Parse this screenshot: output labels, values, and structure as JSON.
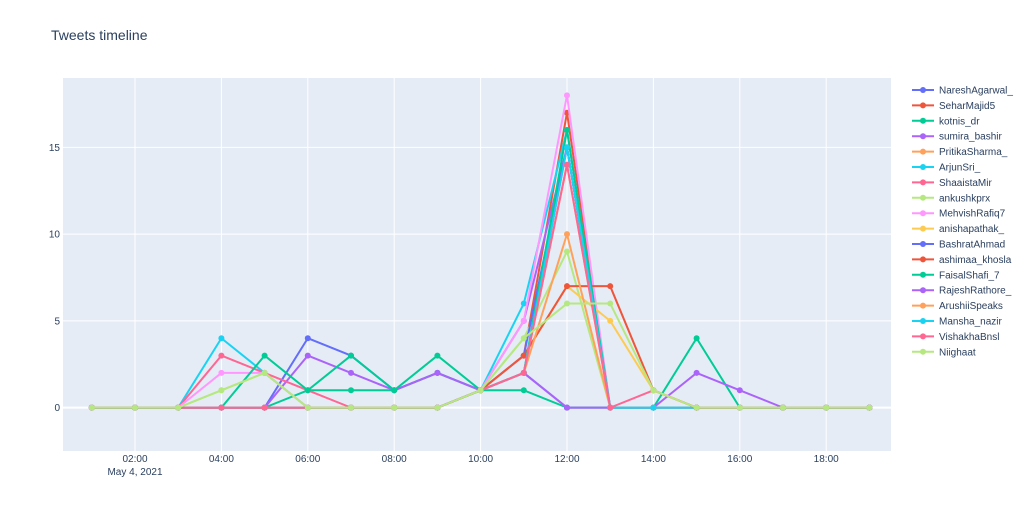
{
  "chart_data": {
    "type": "line",
    "title": "Tweets timeline",
    "xlabel": "",
    "ylabel": "",
    "x": [
      "2021-05-04 01:00",
      "2021-05-04 02:00",
      "2021-05-04 03:00",
      "2021-05-04 04:00",
      "2021-05-04 05:00",
      "2021-05-04 06:00",
      "2021-05-04 07:00",
      "2021-05-04 08:00",
      "2021-05-04 09:00",
      "2021-05-04 10:00",
      "2021-05-04 11:00",
      "2021-05-04 12:00",
      "2021-05-04 13:00",
      "2021-05-04 14:00",
      "2021-05-04 15:00",
      "2021-05-04 16:00",
      "2021-05-04 17:00",
      "2021-05-04 18:00",
      "2021-05-04 19:00"
    ],
    "x_tick_values": [
      "2021-05-04 02:00",
      "2021-05-04 04:00",
      "2021-05-04 06:00",
      "2021-05-04 08:00",
      "2021-05-04 10:00",
      "2021-05-04 12:00",
      "2021-05-04 14:00",
      "2021-05-04 16:00",
      "2021-05-04 18:00"
    ],
    "x_tick_labels": [
      "02:00",
      "04:00",
      "06:00",
      "08:00",
      "10:00",
      "12:00",
      "14:00",
      "16:00",
      "18:00"
    ],
    "x_date_label": "May 4, 2021",
    "xlim": [
      "2021-05-04 00:20",
      "2021-05-04 19:30"
    ],
    "ylim": [
      -2.5,
      19
    ],
    "y_ticks": [
      0,
      5,
      10,
      15
    ],
    "grid": true,
    "legend_position": "right",
    "colors": {
      "plot_bg": "#e5ecf6",
      "grid": "#ffffff",
      "text": "#2a3f5f"
    },
    "series": [
      {
        "name": "NareshAgarwal_",
        "color": "#636efa",
        "values": [
          0,
          0,
          0,
          0,
          0,
          4,
          3,
          1,
          2,
          1,
          2,
          0,
          0,
          0,
          0,
          0,
          0,
          0,
          0
        ]
      },
      {
        "name": "SeharMajid5",
        "color": "#EF553B",
        "values": [
          0,
          0,
          0,
          0,
          0,
          0,
          0,
          0,
          0,
          1,
          3,
          17,
          0,
          0,
          0,
          0,
          0,
          0,
          0
        ]
      },
      {
        "name": "kotnis_dr",
        "color": "#00cc96",
        "values": [
          0,
          0,
          0,
          0,
          0,
          1,
          1,
          1,
          2,
          1,
          1,
          0,
          0,
          0,
          0,
          0,
          0,
          0,
          0
        ]
      },
      {
        "name": "sumira_bashir",
        "color": "#ab63fa",
        "values": [
          0,
          0,
          0,
          0,
          0,
          3,
          2,
          1,
          2,
          1,
          5,
          15,
          0,
          0,
          0,
          0,
          0,
          0,
          0
        ]
      },
      {
        "name": "PritikaSharma_",
        "color": "#FFA15A",
        "values": [
          0,
          0,
          0,
          0,
          0,
          0,
          0,
          0,
          0,
          1,
          2,
          14,
          0,
          0,
          0,
          0,
          0,
          0,
          0
        ]
      },
      {
        "name": "ArjunSri_",
        "color": "#19d3f3",
        "values": [
          0,
          0,
          0,
          4,
          2,
          0,
          0,
          0,
          0,
          1,
          6,
          16,
          0,
          0,
          0,
          0,
          0,
          0,
          0
        ]
      },
      {
        "name": "ShaaistaMir",
        "color": "#FF6692",
        "values": [
          0,
          0,
          0,
          3,
          2,
          1,
          0,
          0,
          0,
          1,
          2,
          15,
          0,
          0,
          0,
          0,
          0,
          0,
          0
        ]
      },
      {
        "name": "ankushkprx",
        "color": "#B6E880",
        "values": [
          0,
          0,
          0,
          1,
          2,
          0,
          0,
          0,
          0,
          1,
          4,
          9,
          0,
          0,
          0,
          0,
          0,
          0,
          0
        ]
      },
      {
        "name": "MehvishRafiq7",
        "color": "#FF97FF",
        "values": [
          0,
          0,
          0,
          2,
          2,
          0,
          0,
          0,
          0,
          1,
          5,
          18,
          0,
          0,
          0,
          0,
          0,
          0,
          0
        ]
      },
      {
        "name": "anishapathak_",
        "color": "#FECB52",
        "values": [
          0,
          0,
          0,
          0,
          0,
          0,
          0,
          0,
          0,
          1,
          3,
          7,
          5,
          1,
          0,
          0,
          0,
          0,
          0
        ]
      },
      {
        "name": "BashratAhmad",
        "color": "#636efa",
        "values": [
          0,
          0,
          0,
          0,
          0,
          0,
          0,
          0,
          0,
          1,
          3,
          15,
          0,
          0,
          0,
          0,
          0,
          0,
          0
        ]
      },
      {
        "name": "ashimaa_khosla",
        "color": "#EF553B",
        "values": [
          0,
          0,
          0,
          0,
          0,
          0,
          0,
          0,
          0,
          1,
          3,
          7,
          7,
          1,
          0,
          0,
          0,
          0,
          0
        ]
      },
      {
        "name": "FaisalShafi_7",
        "color": "#00cc96",
        "values": [
          0,
          0,
          0,
          0,
          3,
          1,
          3,
          1,
          3,
          1,
          2,
          16,
          0,
          0,
          4,
          0,
          0,
          0,
          0
        ]
      },
      {
        "name": "RajeshRathore_",
        "color": "#ab63fa",
        "values": [
          0,
          0,
          0,
          0,
          0,
          0,
          0,
          0,
          0,
          1,
          2,
          0,
          0,
          0,
          2,
          1,
          0,
          0,
          0
        ]
      },
      {
        "name": "ArushiiSpeaks",
        "color": "#FFA15A",
        "values": [
          0,
          0,
          0,
          0,
          0,
          0,
          0,
          0,
          0,
          1,
          2,
          10,
          0,
          0,
          0,
          0,
          0,
          0,
          0
        ]
      },
      {
        "name": "Mansha_nazir",
        "color": "#19d3f3",
        "values": [
          0,
          0,
          0,
          0,
          0,
          0,
          0,
          0,
          0,
          1,
          2,
          15,
          0,
          0,
          0,
          0,
          0,
          0,
          0
        ]
      },
      {
        "name": "VishakhaBnsl",
        "color": "#FF6692",
        "values": [
          0,
          0,
          0,
          0,
          0,
          0,
          0,
          0,
          0,
          1,
          2,
          14,
          0,
          1,
          0,
          0,
          0,
          0,
          0
        ]
      },
      {
        "name": "Niighaat",
        "color": "#B6E880",
        "values": [
          0,
          0,
          0,
          1,
          2,
          0,
          0,
          0,
          0,
          1,
          4,
          6,
          6,
          1,
          0,
          0,
          0,
          0,
          0
        ]
      }
    ]
  }
}
